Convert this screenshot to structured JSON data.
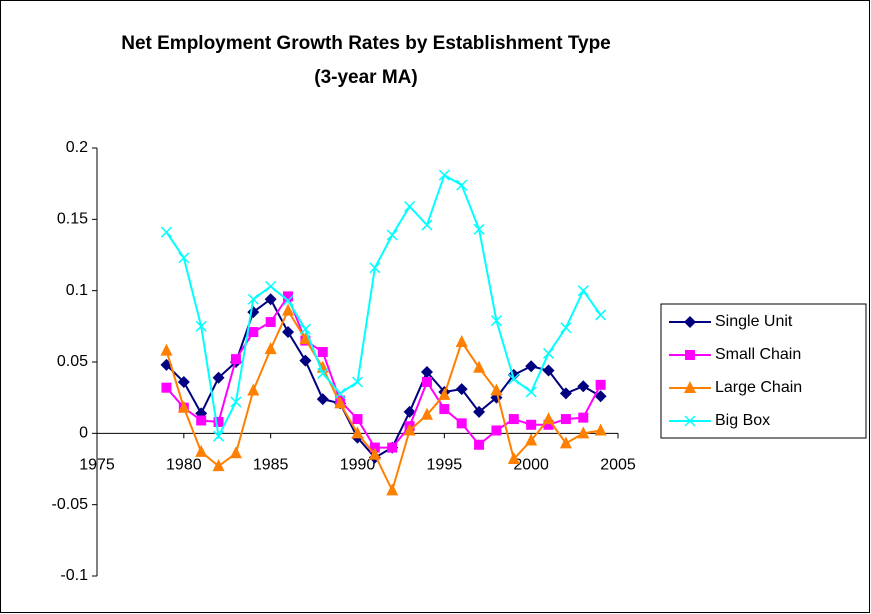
{
  "chart_data": {
    "type": "line",
    "title": "Net Employment Growth Rates by Establishment Type",
    "subtitle": "(3-year MA)",
    "x": [
      1979,
      1980,
      1981,
      1982,
      1983,
      1984,
      1985,
      1986,
      1987,
      1988,
      1989,
      1990,
      1991,
      1992,
      1993,
      1994,
      1995,
      1996,
      1997,
      1998,
      1999,
      2000,
      2001,
      2002,
      2003,
      2004
    ],
    "series": [
      {
        "name": "Single Unit",
        "color": "#000080",
        "marker": "diamond",
        "values": [
          0.048,
          0.036,
          0.014,
          0.039,
          0.05,
          0.085,
          0.094,
          0.071,
          0.051,
          0.024,
          0.021,
          -0.003,
          -0.017,
          -0.01,
          0.015,
          0.043,
          0.029,
          0.031,
          0.015,
          0.025,
          0.041,
          0.047,
          0.044,
          0.028,
          0.033,
          0.026
        ]
      },
      {
        "name": "Small Chain",
        "color": "#ff00ff",
        "marker": "square",
        "values": [
          0.032,
          0.018,
          0.009,
          0.008,
          0.052,
          0.071,
          0.078,
          0.096,
          0.065,
          0.057,
          0.023,
          0.01,
          -0.01,
          -0.01,
          0.005,
          0.036,
          0.017,
          0.007,
          -0.008,
          0.002,
          0.01,
          0.006,
          0.006,
          0.01,
          0.011,
          0.034
        ]
      },
      {
        "name": "Large Chain",
        "color": "#ff8000",
        "marker": "triangle",
        "values": [
          0.058,
          0.018,
          -0.013,
          -0.023,
          -0.014,
          0.03,
          0.059,
          0.086,
          0.066,
          0.046,
          0.021,
          0.0,
          -0.015,
          -0.04,
          0.002,
          0.013,
          0.027,
          0.064,
          0.046,
          0.03,
          -0.018,
          -0.005,
          0.01,
          -0.007,
          0.0,
          0.002
        ]
      },
      {
        "name": "Big Box",
        "color": "#00ffff",
        "marker": "x",
        "values": [
          0.141,
          0.123,
          0.075,
          -0.002,
          0.022,
          0.094,
          0.103,
          0.093,
          0.073,
          0.042,
          0.028,
          0.036,
          0.116,
          0.139,
          0.159,
          0.146,
          0.181,
          0.174,
          0.143,
          0.079,
          0.038,
          0.029,
          0.056,
          0.074,
          0.1,
          0.083
        ]
      }
    ],
    "xlim": [
      1975,
      2005
    ],
    "xticks": [
      1975,
      1980,
      1985,
      1990,
      1995,
      2000,
      2005
    ],
    "ylim": [
      -0.1,
      0.2
    ],
    "yticks": [
      -0.1,
      -0.05,
      0,
      0.05,
      0.1,
      0.15,
      0.2
    ],
    "legend": "right"
  }
}
